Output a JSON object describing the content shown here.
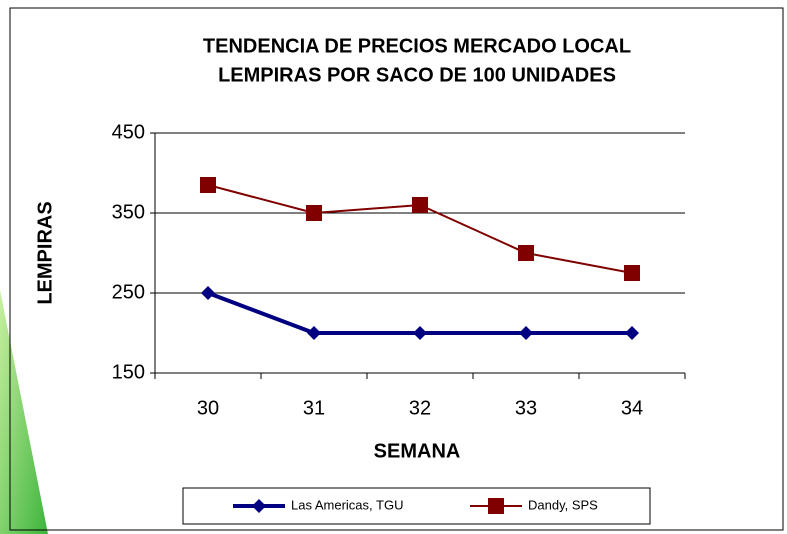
{
  "chart_data": {
    "type": "line",
    "title": [
      "TENDENCIA DE PRECIOS MERCADO LOCAL",
      "LEMPIRAS POR SACO DE 100 UNIDADES"
    ],
    "x_label": "SEMANA",
    "y_label": "LEMPIRAS",
    "categories": [
      "30",
      "31",
      "32",
      "33",
      "34"
    ],
    "series": [
      {
        "name": "Las Americas, TGU",
        "color": "#000080",
        "marker": "diamond",
        "values": [
          250,
          200,
          200,
          200,
          200
        ]
      },
      {
        "name": "Dandy, SPS",
        "color": "#800000",
        "marker": "square",
        "values": [
          385,
          350,
          360,
          300,
          275
        ]
      }
    ],
    "ylim": [
      150,
      450
    ],
    "yticks": [
      150,
      250,
      350,
      450
    ],
    "grid": true,
    "legend": "bottom"
  }
}
